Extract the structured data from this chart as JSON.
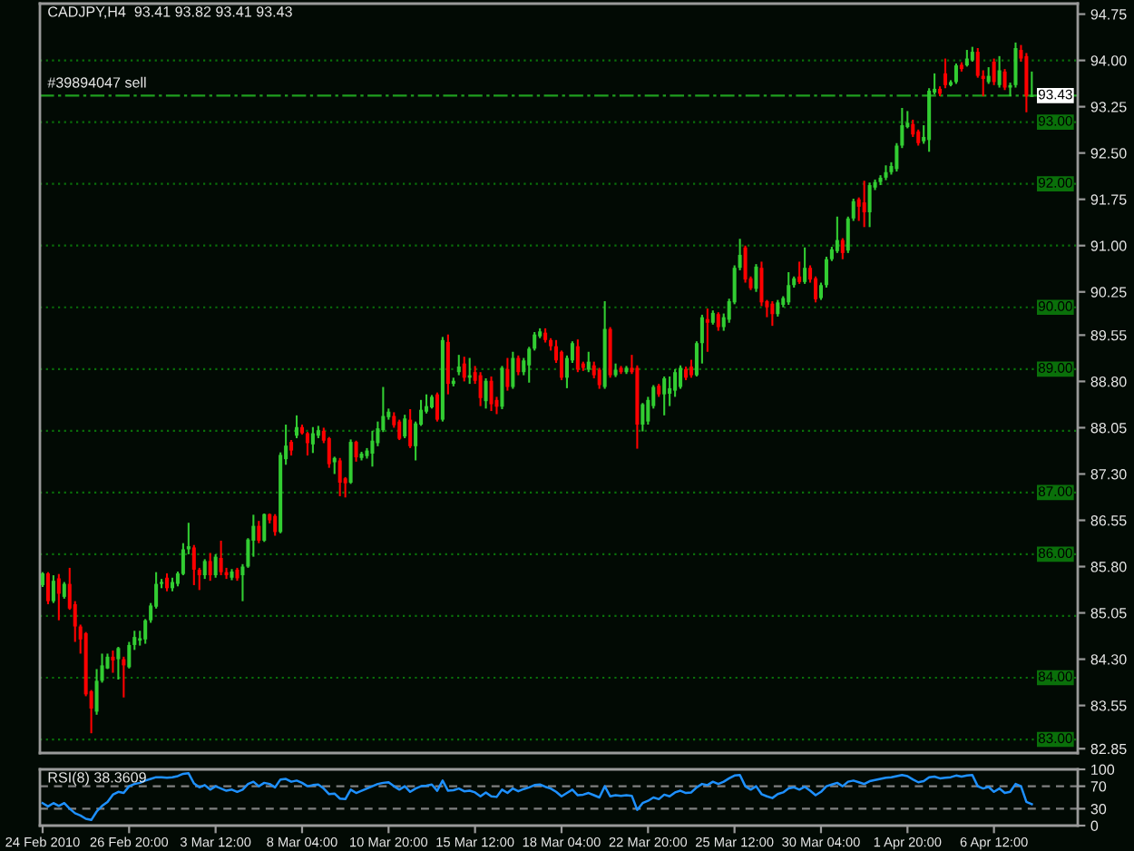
{
  "chart_data": [
    {
      "type": "candlestick",
      "title": "CADJPY,H4  93.41 93.82 93.41 93.43",
      "categories": [
        null,
        null,
        null,
        null,
        null,
        null,
        null,
        null,
        null,
        null,
        null,
        null,
        null,
        null,
        null,
        null,
        null,
        null,
        null,
        null,
        null,
        null,
        null,
        null,
        null,
        null,
        null,
        null,
        null,
        null,
        null,
        null,
        null,
        null,
        null,
        null,
        null,
        null,
        null,
        null,
        null,
        null,
        null,
        null,
        null,
        null,
        null,
        null,
        null,
        null,
        null,
        null,
        null,
        null,
        null,
        null,
        null,
        null,
        null,
        null,
        null,
        null,
        null,
        null,
        null,
        null,
        null,
        null,
        null,
        null,
        null,
        null,
        null,
        null,
        null,
        null,
        null,
        null,
        null,
        null,
        null,
        null,
        null,
        null,
        null,
        null,
        null,
        null,
        null,
        null,
        null,
        null,
        null,
        null,
        null,
        null,
        null,
        null,
        null,
        null,
        null,
        null,
        null,
        null,
        null,
        null,
        null,
        null,
        null,
        null,
        null,
        null,
        null,
        null,
        null,
        null,
        null,
        null,
        null,
        null,
        null,
        null,
        null,
        null,
        null,
        null,
        null,
        null,
        null,
        null,
        null,
        null,
        null,
        null,
        null,
        null,
        null,
        null,
        null,
        null,
        null,
        null,
        null,
        null,
        null,
        null,
        null,
        null,
        null,
        null,
        null,
        null,
        null,
        null,
        null,
        null,
        null,
        null,
        null,
        null,
        null,
        null,
        null,
        null,
        null,
        null,
        null,
        null,
        null,
        null,
        null,
        null,
        null,
        null,
        null,
        null,
        null,
        null,
        null,
        null,
        null,
        null,
        null,
        null,
        null,
        null,
        null,
        null,
        null,
        null,
        null,
        null
      ],
      "ohlc": [
        [
          85.5,
          85.71,
          85.47,
          85.69
        ],
        [
          85.69,
          85.71,
          85.19,
          85.24
        ],
        [
          85.24,
          85.66,
          85.21,
          85.57
        ],
        [
          85.61,
          85.68,
          84.93,
          85.36
        ],
        [
          85.31,
          85.55,
          85.28,
          85.52
        ],
        [
          85.52,
          85.78,
          85.1,
          85.12
        ],
        [
          85.19,
          85.24,
          84.58,
          84.83
        ],
        [
          84.83,
          84.86,
          84.39,
          84.62
        ],
        [
          84.72,
          84.74,
          83.7,
          83.73
        ],
        [
          83.78,
          83.8,
          83.1,
          83.5
        ],
        [
          83.45,
          84.14,
          83.4,
          83.95
        ],
        [
          83.95,
          84.39,
          83.92,
          84.2
        ],
        [
          84.15,
          84.39,
          84.14,
          84.34
        ],
        [
          84.34,
          84.44,
          84.08,
          84.28
        ],
        [
          84.3,
          84.5,
          83.97,
          84.48
        ],
        [
          84.3,
          84.34,
          83.68,
          84.2
        ],
        [
          84.17,
          84.58,
          84.15,
          84.53
        ],
        [
          84.53,
          84.76,
          84.45,
          84.66
        ],
        [
          84.6,
          84.76,
          84.52,
          84.64
        ],
        [
          84.62,
          84.95,
          84.55,
          84.93
        ],
        [
          84.93,
          85.21,
          84.89,
          85.17
        ],
        [
          85.15,
          85.71,
          85.12,
          85.52
        ],
        [
          85.52,
          85.6,
          85.45,
          85.55
        ],
        [
          85.62,
          85.69,
          85.4,
          85.45
        ],
        [
          85.45,
          85.62,
          85.4,
          85.55
        ],
        [
          85.52,
          85.72,
          85.48,
          85.69
        ],
        [
          85.68,
          86.18,
          85.66,
          86.08
        ],
        [
          86.08,
          86.51,
          86.0,
          86.13
        ],
        [
          86.11,
          86.15,
          85.5,
          85.75
        ],
        [
          85.75,
          85.78,
          85.42,
          85.66
        ],
        [
          85.66,
          85.92,
          85.6,
          85.89
        ],
        [
          85.89,
          86.02,
          85.57,
          85.66
        ],
        [
          85.66,
          86.0,
          85.62,
          85.96
        ],
        [
          85.94,
          86.22,
          85.66,
          85.71
        ],
        [
          85.71,
          85.78,
          85.6,
          85.66
        ],
        [
          85.62,
          85.76,
          85.58,
          85.72
        ],
        [
          85.75,
          85.78,
          85.57,
          85.61
        ],
        [
          85.66,
          85.84,
          85.24,
          85.8
        ],
        [
          85.8,
          86.26,
          85.78,
          86.24
        ],
        [
          86.22,
          86.64,
          85.96,
          86.46
        ],
        [
          86.46,
          86.54,
          86.18,
          86.22
        ],
        [
          86.22,
          86.66,
          86.2,
          86.65
        ],
        [
          86.65,
          86.66,
          86.5,
          86.55
        ],
        [
          86.62,
          86.65,
          86.3,
          86.36
        ],
        [
          86.36,
          87.65,
          86.34,
          87.61
        ],
        [
          87.54,
          88.1,
          87.45,
          87.76
        ],
        [
          87.82,
          87.85,
          87.6,
          87.68
        ],
        [
          87.92,
          88.25,
          87.88,
          88.06
        ],
        [
          88.06,
          88.1,
          87.94,
          87.96
        ],
        [
          87.96,
          87.98,
          87.6,
          87.8
        ],
        [
          87.78,
          88.06,
          87.64,
          87.96
        ],
        [
          87.92,
          88.08,
          87.88,
          88.01
        ],
        [
          88.0,
          88.05,
          87.8,
          87.84
        ],
        [
          87.88,
          87.9,
          87.4,
          87.46
        ],
        [
          87.49,
          87.58,
          87.3,
          87.56
        ],
        [
          87.52,
          87.56,
          86.94,
          87.16
        ],
        [
          87.23,
          87.25,
          86.92,
          87.15
        ],
        [
          87.16,
          87.86,
          87.14,
          87.82
        ],
        [
          87.82,
          87.84,
          87.5,
          87.57
        ],
        [
          87.56,
          87.66,
          87.52,
          87.63
        ],
        [
          87.59,
          87.72,
          87.55,
          87.68
        ],
        [
          87.63,
          88.0,
          87.42,
          87.84
        ],
        [
          87.8,
          88.15,
          87.75,
          88.04
        ],
        [
          88.01,
          88.71,
          87.98,
          88.24
        ],
        [
          88.22,
          88.36,
          88.18,
          88.31
        ],
        [
          88.24,
          88.3,
          88.05,
          88.09
        ],
        [
          88.15,
          88.18,
          87.85,
          87.87
        ],
        [
          87.91,
          88.26,
          87.88,
          88.2
        ],
        [
          88.18,
          88.35,
          87.72,
          87.75
        ],
        [
          87.75,
          88.15,
          87.52,
          88.12
        ],
        [
          88.1,
          88.5,
          88.08,
          88.34
        ],
        [
          88.31,
          88.59,
          88.28,
          88.4
        ],
        [
          88.38,
          88.58,
          88.36,
          88.55
        ],
        [
          88.59,
          88.62,
          88.15,
          88.18
        ],
        [
          88.18,
          89.52,
          88.15,
          89.47
        ],
        [
          89.44,
          89.56,
          88.59,
          88.76
        ],
        [
          88.76,
          88.86,
          88.72,
          88.81
        ],
        [
          88.95,
          89.23,
          88.9,
          89.04
        ],
        [
          89.09,
          89.2,
          88.8,
          88.86
        ],
        [
          88.86,
          89.18,
          88.76,
          88.9
        ],
        [
          88.95,
          89.05,
          88.76,
          88.81
        ],
        [
          88.9,
          88.95,
          88.4,
          88.53
        ],
        [
          88.48,
          88.85,
          88.36,
          88.81
        ],
        [
          88.81,
          88.88,
          88.32,
          88.43
        ],
        [
          88.5,
          88.55,
          88.27,
          88.39
        ],
        [
          88.39,
          89.05,
          88.35,
          89.02
        ],
        [
          89.0,
          89.18,
          88.65,
          88.71
        ],
        [
          88.71,
          89.28,
          88.68,
          89.18
        ],
        [
          89.18,
          89.22,
          88.9,
          88.95
        ],
        [
          88.95,
          89.18,
          88.9,
          89.14
        ],
        [
          89.06,
          89.36,
          88.78,
          89.33
        ],
        [
          89.33,
          89.6,
          89.3,
          89.56
        ],
        [
          89.53,
          89.66,
          89.5,
          89.61
        ],
        [
          89.59,
          89.66,
          89.43,
          89.47
        ],
        [
          89.47,
          89.5,
          89.3,
          89.37
        ],
        [
          89.37,
          89.47,
          89.1,
          89.14
        ],
        [
          89.28,
          89.3,
          88.82,
          88.86
        ],
        [
          88.86,
          89.22,
          88.69,
          89.18
        ],
        [
          89.14,
          89.45,
          89.1,
          89.42
        ],
        [
          89.37,
          89.48,
          88.95,
          88.99
        ],
        [
          89.09,
          89.12,
          88.97,
          89.02
        ],
        [
          88.99,
          89.28,
          88.95,
          89.12
        ],
        [
          89.06,
          89.12,
          88.85,
          88.9
        ],
        [
          88.99,
          89.02,
          88.68,
          88.74
        ],
        [
          88.71,
          90.1,
          88.68,
          89.65
        ],
        [
          89.65,
          89.68,
          88.86,
          88.9
        ],
        [
          88.9,
          89.09,
          88.87,
          88.99
        ],
        [
          89.02,
          89.05,
          88.92,
          88.95
        ],
        [
          88.95,
          89.05,
          88.92,
          89.02
        ],
        [
          89.02,
          89.23,
          88.92,
          88.95
        ],
        [
          89.02,
          89.06,
          87.71,
          88.1
        ],
        [
          88.1,
          88.45,
          87.99,
          88.43
        ],
        [
          88.15,
          88.55,
          88.1,
          88.5
        ],
        [
          88.4,
          88.74,
          88.36,
          88.71
        ],
        [
          88.73,
          88.76,
          88.55,
          88.59
        ],
        [
          88.59,
          88.88,
          88.25,
          88.85
        ],
        [
          88.6,
          88.88,
          88.4,
          88.69
        ],
        [
          88.65,
          89.0,
          88.55,
          88.95
        ],
        [
          88.71,
          89.06,
          88.68,
          89.02
        ],
        [
          89.0,
          89.04,
          88.82,
          88.86
        ],
        [
          89.04,
          89.15,
          88.86,
          88.9
        ],
        [
          88.9,
          89.45,
          88.88,
          89.42
        ],
        [
          89.42,
          89.88,
          89.09,
          89.84
        ],
        [
          89.81,
          89.98,
          89.28,
          89.75
        ],
        [
          89.75,
          89.95,
          89.72,
          89.91
        ],
        [
          89.89,
          89.92,
          89.62,
          89.68
        ],
        [
          89.68,
          89.9,
          89.62,
          89.84
        ],
        [
          89.8,
          90.14,
          89.75,
          90.1
        ],
        [
          90.08,
          90.68,
          90.05,
          90.64
        ],
        [
          90.64,
          91.11,
          90.6,
          90.85
        ],
        [
          90.97,
          91.0,
          90.4,
          90.45
        ],
        [
          90.47,
          90.5,
          90.28,
          90.31
        ],
        [
          90.3,
          90.7,
          90.25,
          90.66
        ],
        [
          90.64,
          90.74,
          90.02,
          90.08
        ],
        [
          90.1,
          90.12,
          89.84,
          90.0
        ],
        [
          90.06,
          90.1,
          89.7,
          89.89
        ],
        [
          89.89,
          90.12,
          89.85,
          90.08
        ],
        [
          90.04,
          90.18,
          90.0,
          90.15
        ],
        [
          90.08,
          90.57,
          90.04,
          90.36
        ],
        [
          90.36,
          90.5,
          90.32,
          90.47
        ],
        [
          90.5,
          90.74,
          90.38,
          90.41
        ],
        [
          90.41,
          90.97,
          90.38,
          90.64
        ],
        [
          90.64,
          90.68,
          90.4,
          90.45
        ],
        [
          90.47,
          90.5,
          90.08,
          90.13
        ],
        [
          90.15,
          90.4,
          90.12,
          90.36
        ],
        [
          90.36,
          90.82,
          90.32,
          90.78
        ],
        [
          90.78,
          90.98,
          90.75,
          90.94
        ],
        [
          90.91,
          91.47,
          90.88,
          91.09
        ],
        [
          91.09,
          91.12,
          90.78,
          90.88
        ],
        [
          90.92,
          91.47,
          90.88,
          91.44
        ],
        [
          91.44,
          91.76,
          91.4,
          91.72
        ],
        [
          91.75,
          91.78,
          91.4,
          91.63
        ],
        [
          91.7,
          92.05,
          91.3,
          91.54
        ],
        [
          91.54,
          92.02,
          91.3,
          91.98
        ],
        [
          91.94,
          92.07,
          91.9,
          92.03
        ],
        [
          92.03,
          92.14,
          91.98,
          92.1
        ],
        [
          92.1,
          92.3,
          92.06,
          92.19
        ],
        [
          92.19,
          92.35,
          92.15,
          92.29
        ],
        [
          92.24,
          92.66,
          92.2,
          92.62
        ],
        [
          92.62,
          93.23,
          92.58,
          92.95
        ],
        [
          92.92,
          93.18,
          92.9,
          92.99
        ],
        [
          92.97,
          93.04,
          92.76,
          92.8
        ],
        [
          92.85,
          92.88,
          92.62,
          92.66
        ],
        [
          92.69,
          92.95,
          92.65,
          92.76
        ],
        [
          92.71,
          93.55,
          92.52,
          93.51
        ],
        [
          93.48,
          93.79,
          93.45,
          93.54
        ],
        [
          93.54,
          93.58,
          93.42,
          93.46
        ],
        [
          93.79,
          94.03,
          93.55,
          93.6
        ],
        [
          93.6,
          93.68,
          93.58,
          93.65
        ],
        [
          93.65,
          93.95,
          93.62,
          93.92
        ],
        [
          93.93,
          93.97,
          93.82,
          93.86
        ],
        [
          93.92,
          94.17,
          93.9,
          94.03
        ],
        [
          94.0,
          94.22,
          93.98,
          94.14
        ],
        [
          94.14,
          94.2,
          93.72,
          93.75
        ],
        [
          93.75,
          93.84,
          93.42,
          93.7
        ],
        [
          93.65,
          93.89,
          93.62,
          93.75
        ],
        [
          93.98,
          94.03,
          93.6,
          93.65
        ],
        [
          93.6,
          94.07,
          93.56,
          93.84
        ],
        [
          93.82,
          93.86,
          93.52,
          93.56
        ],
        [
          93.56,
          93.64,
          93.42,
          93.6
        ],
        [
          93.6,
          94.29,
          93.56,
          94.2
        ],
        [
          94.17,
          94.25,
          93.98,
          94.03
        ],
        [
          94.07,
          94.12,
          93.16,
          93.42
        ],
        [
          93.41,
          93.82,
          93.41,
          93.43
        ],
        null,
        null,
        null,
        null,
        null,
        null,
        null,
        null
      ],
      "colors": [
        "#32cd32",
        "#ff0000",
        "#32cd32",
        "#ff0000",
        "#32cd32",
        "#ff0000",
        "#ff0000",
        "#ff0000",
        "#ff0000",
        "#ff0000",
        "#32cd32",
        "#32cd32",
        "#32cd32",
        "#ff0000",
        "#32cd32",
        "#ff0000",
        "#32cd32",
        "#32cd32",
        "#32cd32",
        "#32cd32",
        "#32cd32",
        "#32cd32",
        "#32cd32",
        "#ff0000",
        "#32cd32",
        "#32cd32",
        "#32cd32",
        "#32cd32",
        "#ff0000",
        "#ff0000",
        "#32cd32",
        "#ff0000",
        "#32cd32",
        "#ff0000",
        "#ff0000",
        "#32cd32",
        "#ff0000",
        "#32cd32",
        "#32cd32",
        "#32cd32",
        "#ff0000",
        "#32cd32",
        "#ff0000",
        "#ff0000",
        "#32cd32",
        "#32cd32",
        "#ff0000",
        "#32cd32",
        "#ff0000",
        "#ff0000",
        "#32cd32",
        "#32cd32",
        "#ff0000",
        "#ff0000",
        "#32cd32",
        "#ff0000",
        "#ff0000",
        "#32cd32",
        "#ff0000",
        "#32cd32",
        "#32cd32",
        "#32cd32",
        "#32cd32",
        "#32cd32",
        "#32cd32",
        "#ff0000",
        "#ff0000",
        "#32cd32",
        "#ff0000",
        "#32cd32",
        "#32cd32",
        "#32cd32",
        "#32cd32",
        "#ff0000",
        "#32cd32",
        "#ff0000",
        "#32cd32",
        "#32cd32",
        "#ff0000",
        "#32cd32",
        "#ff0000",
        "#ff0000",
        "#32cd32",
        "#ff0000",
        "#ff0000",
        "#32cd32",
        "#ff0000",
        "#32cd32",
        "#ff0000",
        "#32cd32",
        "#32cd32",
        "#32cd32",
        "#32cd32",
        "#ff0000",
        "#ff0000",
        "#ff0000",
        "#ff0000",
        "#32cd32",
        "#32cd32",
        "#ff0000",
        "#ff0000",
        "#32cd32",
        "#ff0000",
        "#ff0000",
        "#32cd32",
        "#ff0000",
        "#32cd32",
        "#ff0000",
        "#32cd32",
        "#ff0000",
        "#ff0000",
        "#32cd32",
        "#32cd32",
        "#32cd32",
        "#ff0000",
        "#32cd32",
        "#32cd32",
        "#32cd32",
        "#32cd32",
        "#ff0000",
        "#ff0000",
        "#32cd32",
        "#32cd32",
        "#ff0000",
        "#32cd32",
        "#ff0000",
        "#32cd32",
        "#32cd32",
        "#32cd32",
        "#32cd32",
        "#ff0000",
        "#ff0000",
        "#32cd32",
        "#ff0000",
        "#ff0000",
        "#ff0000",
        "#32cd32",
        "#32cd32",
        "#32cd32",
        "#32cd32",
        "#ff0000",
        "#32cd32",
        "#ff0000",
        "#ff0000",
        "#32cd32",
        "#32cd32",
        "#32cd32",
        "#32cd32",
        "#ff0000",
        "#32cd32",
        "#32cd32",
        "#ff0000",
        "#ff0000",
        "#32cd32",
        "#32cd32",
        "#32cd32",
        "#32cd32",
        "#32cd32",
        "#32cd32",
        "#32cd32",
        "#32cd32",
        "#ff0000",
        "#ff0000",
        "#32cd32",
        "#32cd32",
        "#32cd32",
        "#ff0000",
        "#ff0000",
        "#32cd32",
        "#32cd32",
        "#ff0000",
        "#32cd32",
        "#32cd32",
        "#ff0000",
        "#ff0000",
        "#32cd32",
        "#ff0000",
        "#32cd32",
        "#ff0000",
        "#32cd32",
        "#32cd32",
        "#ff0000",
        "#ff0000",
        "#32cd32",
        null,
        null,
        null,
        null,
        null,
        null,
        null,
        null
      ],
      "ylim": [
        82.78,
        94.92
      ],
      "yticks": [
        {
          "value": 94.75,
          "label": "94.75"
        },
        {
          "value": 94,
          "label": "94.00"
        },
        {
          "value": 93.25,
          "label": "93.25"
        },
        {
          "value": 92.5,
          "label": "92.50"
        },
        {
          "value": 91.75,
          "label": "91.75"
        },
        {
          "value": 91,
          "label": "91.00"
        },
        {
          "value": 90.25,
          "label": "90.25"
        },
        {
          "value": 89.55,
          "label": "89.55"
        },
        {
          "value": 88.8,
          "label": "88.80"
        },
        {
          "value": 88.05,
          "label": "88.05"
        },
        {
          "value": 87.3,
          "label": "87.30"
        },
        {
          "value": 86.55,
          "label": "86.55"
        },
        {
          "value": 85.8,
          "label": "85.80"
        },
        {
          "value": 85.05,
          "label": "85.05"
        },
        {
          "value": 84.3,
          "label": "84.30"
        },
        {
          "value": 83.55,
          "label": "83.55"
        },
        {
          "value": 82.85,
          "label": "82.85"
        }
      ],
      "ref_lines": [
        {
          "axis": "y",
          "value": 93.43,
          "label": "#39894047 sell",
          "color": "#1f9f1f",
          "line_style": "dashdot"
        },
        {
          "axis": "y",
          "value": 94,
          "color": "#0a700a",
          "line_style": "dotted"
        },
        {
          "axis": "y",
          "value": 93,
          "label": "93.00",
          "color": "#0a700a",
          "line_style": "dotted"
        },
        {
          "axis": "y",
          "value": 92,
          "label": "92.00",
          "color": "#0a700a",
          "line_style": "dotted"
        },
        {
          "axis": "y",
          "value": 91,
          "color": "#0a700a",
          "line_style": "dotted"
        },
        {
          "axis": "y",
          "value": 90,
          "label": "90.00",
          "color": "#0a700a",
          "line_style": "dotted"
        },
        {
          "axis": "y",
          "value": 89,
          "label": "89.00",
          "color": "#0a700a",
          "line_style": "dotted"
        },
        {
          "axis": "y",
          "value": 88,
          "color": "#0a700a",
          "line_style": "dotted"
        },
        {
          "axis": "y",
          "value": 87,
          "label": "87.00",
          "color": "#0a700a",
          "line_style": "dotted"
        },
        {
          "axis": "y",
          "value": 86,
          "label": "86.00",
          "color": "#0a700a",
          "line_style": "dotted"
        },
        {
          "axis": "y",
          "value": 85,
          "color": "#0a700a",
          "line_style": "dotted"
        },
        {
          "axis": "y",
          "value": 84,
          "label": "84.00",
          "color": "#0a700a",
          "line_style": "dotted"
        },
        {
          "axis": "y",
          "value": 83,
          "label": "83.00",
          "color": "#0a700a",
          "line_style": "dotted"
        }
      ],
      "annotations": [
        {
          "text": "93.43",
          "y": 93.43
        }
      ],
      "tick_labels": "y"
    },
    {
      "type": "line",
      "title": "RSI(8) 38.3609",
      "categories": [
        "24 Feb 2010",
        null,
        null,
        null,
        null,
        null,
        null,
        null,
        null,
        null,
        null,
        null,
        null,
        null,
        null,
        null,
        "26 Feb 20:00",
        null,
        null,
        null,
        null,
        null,
        null,
        null,
        null,
        null,
        null,
        null,
        null,
        null,
        null,
        null,
        "3 Mar 12:00",
        null,
        null,
        null,
        null,
        null,
        null,
        null,
        null,
        null,
        null,
        null,
        null,
        null,
        null,
        null,
        "8 Mar 04:00",
        null,
        null,
        null,
        null,
        null,
        null,
        null,
        null,
        null,
        null,
        null,
        null,
        null,
        null,
        null,
        "10 Mar 20:00",
        null,
        null,
        null,
        null,
        null,
        null,
        null,
        null,
        null,
        null,
        null,
        null,
        null,
        null,
        null,
        "15 Mar 12:00",
        null,
        null,
        null,
        null,
        null,
        null,
        null,
        null,
        null,
        null,
        null,
        null,
        null,
        null,
        null,
        "18 Mar 04:00",
        null,
        null,
        null,
        null,
        null,
        null,
        null,
        null,
        null,
        null,
        null,
        null,
        null,
        null,
        null,
        "22 Mar 20:00",
        null,
        null,
        null,
        null,
        null,
        null,
        null,
        null,
        null,
        null,
        null,
        null,
        null,
        null,
        null,
        "25 Mar 12:00",
        null,
        null,
        null,
        null,
        null,
        null,
        null,
        null,
        null,
        null,
        null,
        null,
        null,
        null,
        null,
        "30 Mar 04:00",
        null,
        null,
        null,
        null,
        null,
        null,
        null,
        null,
        null,
        null,
        null,
        null,
        null,
        null,
        null,
        "1 Apr 20:00",
        null,
        null,
        null,
        null,
        null,
        null,
        null,
        null,
        null,
        null,
        null,
        null,
        null,
        null,
        null,
        "6 Apr 12:00",
        null,
        null,
        null,
        null,
        null,
        null,
        null,
        null,
        null,
        null,
        null,
        null,
        null,
        null,
        null
      ],
      "series": [
        {
          "color": "#1e90ff",
          "values": [
            40,
            34,
            40,
            35,
            40,
            30,
            22,
            18,
            12,
            10,
            25,
            35,
            42,
            55,
            60,
            58,
            70,
            74,
            76,
            80,
            83,
            86,
            86,
            85,
            86,
            88,
            92,
            93,
            75,
            68,
            72,
            64,
            70,
            66,
            62,
            64,
            60,
            64,
            74,
            78,
            70,
            76,
            74,
            68,
            82,
            83,
            78,
            80,
            76,
            70,
            72,
            73,
            66,
            56,
            57,
            48,
            47,
            64,
            58,
            62,
            66,
            70,
            74,
            76,
            77,
            70,
            64,
            70,
            60,
            66,
            70,
            71,
            73,
            62,
            80,
            62,
            63,
            66,
            61,
            62,
            59,
            52,
            59,
            52,
            51,
            64,
            58,
            66,
            61,
            65,
            68,
            72,
            73,
            69,
            66,
            60,
            52,
            58,
            64,
            54,
            55,
            58,
            54,
            50,
            70,
            52,
            54,
            53,
            54,
            53,
            28,
            40,
            44,
            50,
            47,
            55,
            52,
            59,
            62,
            58,
            59,
            68,
            74,
            72,
            78,
            74,
            78,
            84,
            89,
            90,
            70,
            64,
            70,
            56,
            52,
            49,
            56,
            59,
            66,
            68,
            64,
            69,
            62,
            54,
            60,
            70,
            73,
            76,
            70,
            78,
            80,
            77,
            74,
            79,
            81,
            83,
            85,
            86,
            88,
            90,
            88,
            82,
            77,
            79,
            86,
            87,
            84,
            85,
            86,
            89,
            87,
            89,
            90,
            70,
            66,
            69,
            60,
            66,
            58,
            60,
            74,
            70,
            42,
            38,
            null,
            null,
            null,
            null,
            null,
            null,
            null,
            null
          ]
        }
      ],
      "ylim": [
        0,
        100
      ],
      "yticks": [
        0,
        30,
        70,
        100
      ],
      "ref_lines": [
        {
          "axis": "y",
          "value": 70,
          "color": "#808080",
          "line_style": "dashed"
        },
        {
          "axis": "y",
          "value": 30,
          "color": "#808080",
          "line_style": "dashed"
        }
      ]
    }
  ]
}
